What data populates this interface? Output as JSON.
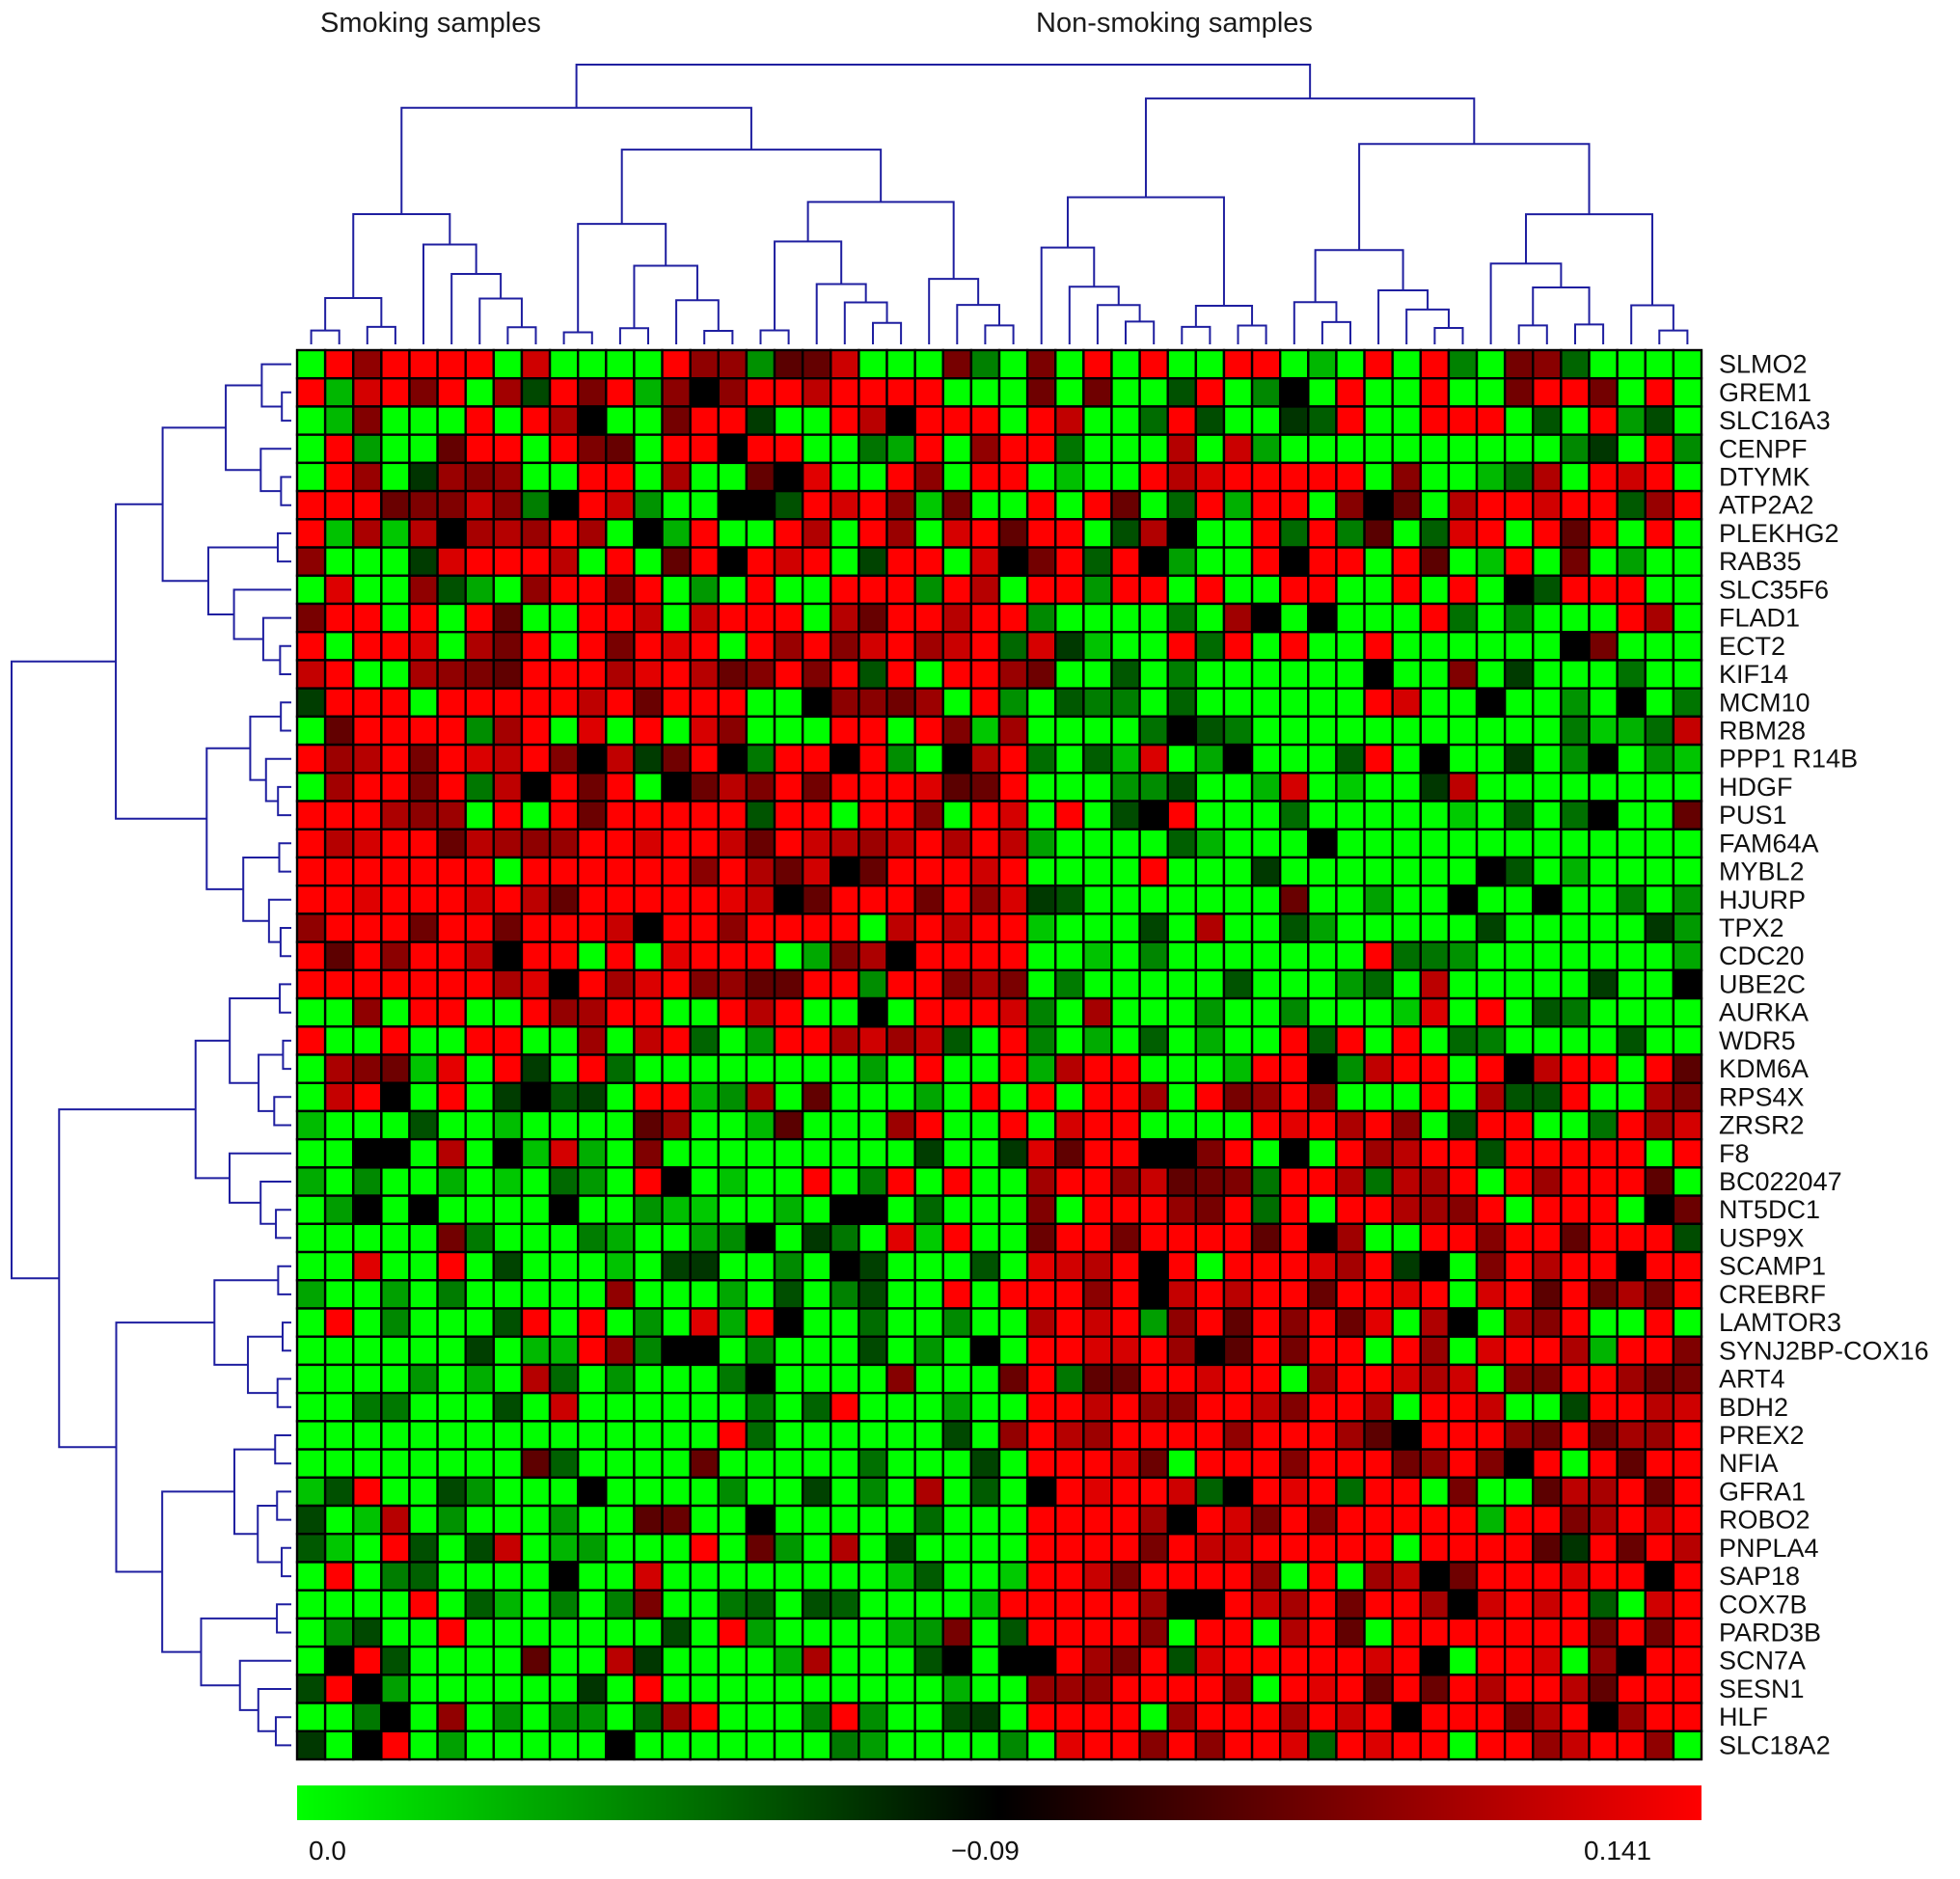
{
  "chart_data": {
    "type": "heatmap",
    "column_groups": [
      {
        "label": "Smoking samples",
        "start": 0,
        "count": 26
      },
      {
        "label": "Non-smoking samples",
        "start": 26,
        "count": 24
      }
    ],
    "n_columns": 50,
    "rows": [
      "SLMO2",
      "GREM1",
      "SLC16A3",
      "CENPF",
      "DTYMK",
      "ATP2A2",
      "PLEKHG2",
      "RAB35",
      "SLC35F6",
      "FLAD1",
      "ECT2",
      "KIF14",
      "MCM10",
      "RBM28",
      "PPP1 R14B",
      "HDGF",
      "PUS1",
      "FAM64A",
      "MYBL2",
      "HJURP",
      "TPX2",
      "CDC20",
      "UBE2C",
      "AURKA",
      "WDR5",
      "KDM6A",
      "RPS4X",
      "ZRSR2",
      "F8",
      "BC022047",
      "NT5DC1",
      "USP9X",
      "SCAMP1",
      "CREBRF",
      "LAMTOR3",
      "SYNJ2BP-COX16",
      "ART4",
      "BDH2",
      "PREX2",
      "NFIA",
      "GFRA1",
      "ROBO2",
      "PNPLA4",
      "SAP18",
      "COX7B",
      "PARD3B",
      "SCN7A",
      "SESN1",
      "HLF",
      "SLC18A2"
    ],
    "row_blocks": [
      {
        "from": 0,
        "to": 8,
        "smoking": 0.55,
        "nonsmoking": 0.45
      },
      {
        "from": 9,
        "to": 16,
        "smoking": 0.78,
        "nonsmoking": 0.12
      },
      {
        "from": 17,
        "to": 22,
        "smoking": 0.92,
        "nonsmoking": 0.05
      },
      {
        "from": 23,
        "to": 24,
        "smoking": 0.55,
        "nonsmoking": 0.1
      },
      {
        "from": 25,
        "to": 27,
        "smoking": 0.3,
        "nonsmoking": 0.65
      },
      {
        "from": 28,
        "to": 49,
        "smoking": 0.1,
        "nonsmoking": 0.88
      }
    ],
    "colorscale": {
      "low_color": "#00ff00",
      "mid_color": "#000000",
      "high_color": "#ff0000",
      "tick_labels": [
        "0.0",
        "−0.09",
        "0.141"
      ]
    },
    "dendrograms": {
      "columns": true,
      "rows": true,
      "color": "#1f1fa0"
    }
  }
}
